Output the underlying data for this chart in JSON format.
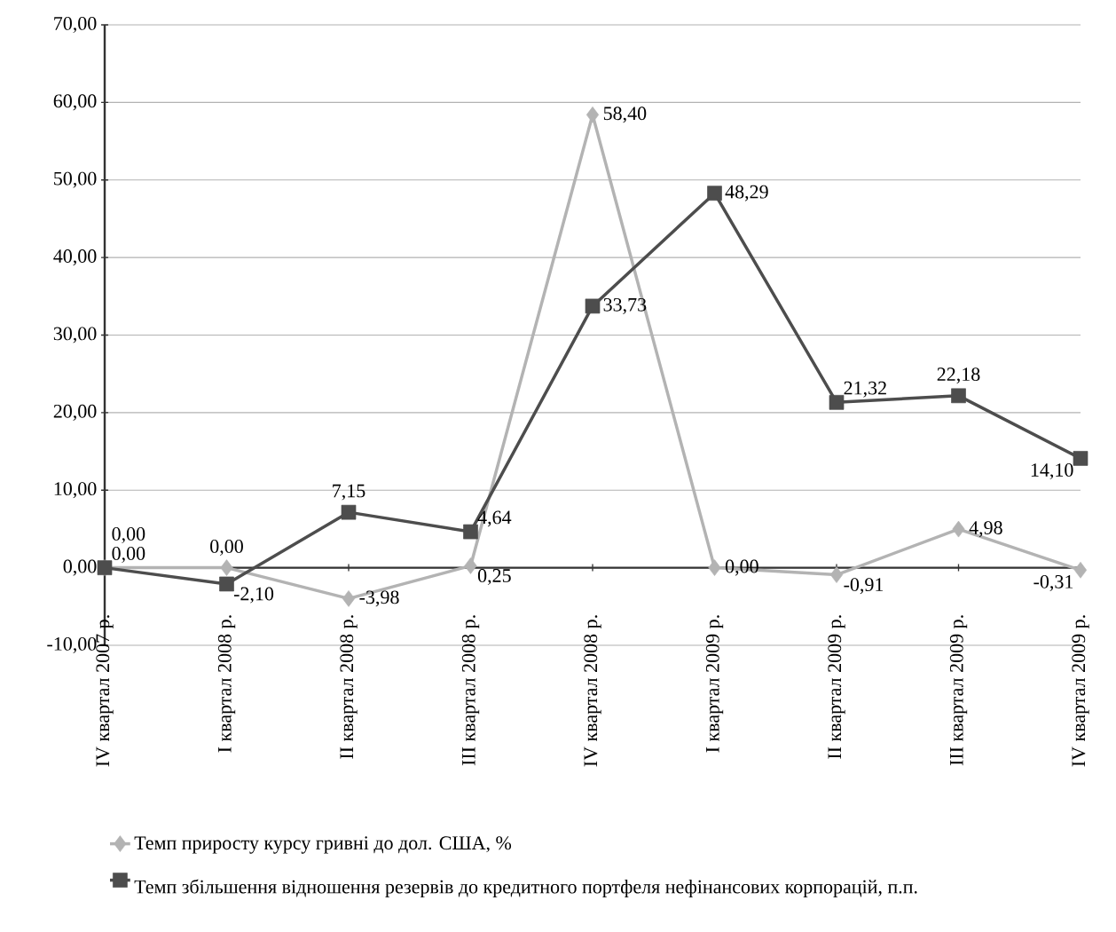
{
  "chart_data": {
    "type": "line",
    "categories": [
      "IV квартал 2007 р.",
      "I квартал 2008 р.",
      "II квартал 2008 р.",
      "III квартал 2008 р.",
      "IV квартал 2008 р.",
      "I квартал 2009 р.",
      "II квартал 2009 р.",
      "III квартал 2009 р.",
      "IV квартал 2009 р."
    ],
    "series": [
      {
        "name": "Темп приросту курсу гривні до дол. США, %",
        "color": "#b3b3b3",
        "marker": "diamond",
        "values": [
          0.0,
          0.0,
          -3.98,
          0.25,
          58.4,
          0.0,
          -0.91,
          4.98,
          -0.31
        ],
        "value_labels": [
          "0,00",
          "0,00",
          "-3,98",
          "0,25",
          "58,40",
          "0,00",
          "-0,91",
          "4,98",
          "-0,31"
        ]
      },
      {
        "name": "Темп збільшення відношення резервів до кредитного портфеля нефінансових корпорацій, п.п.",
        "color": "#4d4d4d",
        "marker": "square",
        "values": [
          0.0,
          -2.1,
          7.15,
          4.64,
          33.73,
          48.29,
          21.32,
          22.18,
          14.1
        ],
        "value_labels": [
          "0,00",
          "-2,10",
          "7,15",
          "4,64",
          "33,73",
          "48,29",
          "21,32",
          "22,18",
          "14,10"
        ]
      }
    ],
    "ylim": [
      -10,
      70
    ],
    "yticks": [
      {
        "value": -10,
        "label": "-10,00"
      },
      {
        "value": 0,
        "label": "0,00"
      },
      {
        "value": 10,
        "label": "10,00"
      },
      {
        "value": 20,
        "label": "20,00"
      },
      {
        "value": 30,
        "label": "30,00"
      },
      {
        "value": 40,
        "label": "40,00"
      },
      {
        "value": 50,
        "label": "50,00"
      },
      {
        "value": 60,
        "label": "60,00"
      },
      {
        "value": 70,
        "label": "70,00"
      }
    ],
    "grid": "y",
    "legend": "bottom"
  }
}
